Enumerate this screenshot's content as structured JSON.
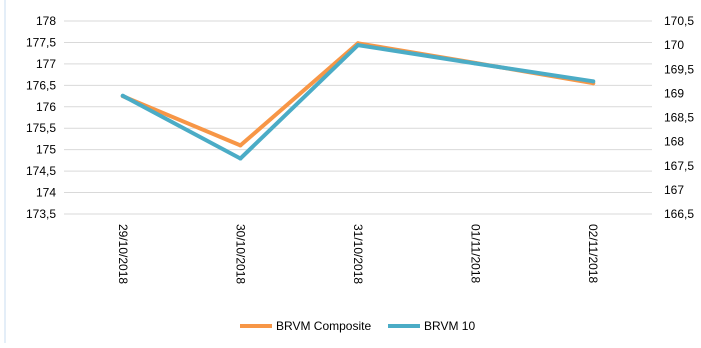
{
  "chart_data": {
    "type": "line",
    "title": "",
    "xlabel": "",
    "ylabel": "",
    "categories": [
      "29/10/2018",
      "30/10/2018",
      "31/10/2018",
      "01/11/2018",
      "02/11/2018"
    ],
    "y_left": {
      "range": [
        173.5,
        178
      ],
      "ticks": [
        "173,5",
        "174",
        "174,5",
        "175",
        "175,5",
        "176",
        "176,5",
        "177",
        "177,5",
        "178"
      ]
    },
    "y_right": {
      "range": [
        166.5,
        170.5
      ],
      "ticks": [
        "166,5",
        "167",
        "167,5",
        "168",
        "168,5",
        "169",
        "169,5",
        "170",
        "170,5"
      ]
    },
    "series": [
      {
        "name": "BRVM Composite",
        "axis": "left",
        "color": "#f79646",
        "values": [
          176.25,
          175.1,
          177.48,
          177.02,
          176.55
        ]
      },
      {
        "name": "BRVM 10",
        "axis": "right",
        "color": "#4bacc6",
        "values": [
          168.95,
          167.65,
          170.0,
          169.62,
          169.25
        ]
      }
    ],
    "grid": true,
    "legend": "bottom-center"
  }
}
